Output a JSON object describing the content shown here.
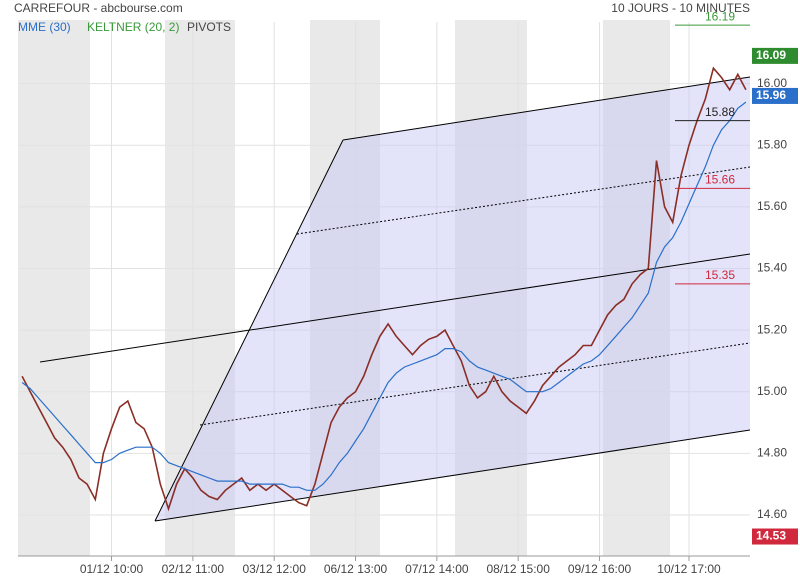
{
  "chart_data": {
    "type": "line",
    "title": "CARREFOUR - abcbourse.com",
    "subtitle": "10 JOURS - 10 MINUTES",
    "legend_extra": [
      "KELTNER (20, 2)",
      "PIVOTS"
    ],
    "categories": [
      null,
      null,
      null,
      null,
      null,
      null,
      null,
      null,
      null,
      null,
      null,
      "01/12 10:00",
      null,
      null,
      null,
      null,
      null,
      null,
      null,
      null,
      null,
      "02/12 11:00",
      null,
      null,
      null,
      null,
      null,
      null,
      null,
      null,
      null,
      "03/12 12:00",
      null,
      null,
      null,
      null,
      null,
      null,
      null,
      null,
      null,
      "06/12 13:00",
      null,
      null,
      null,
      null,
      null,
      null,
      null,
      null,
      null,
      "07/12 14:00",
      null,
      null,
      null,
      null,
      null,
      null,
      null,
      null,
      null,
      "08/12 15:00",
      null,
      null,
      null,
      null,
      null,
      null,
      null,
      null,
      null,
      "09/12 16:00",
      null,
      null,
      null,
      null,
      null,
      null,
      null,
      null,
      null,
      null,
      "10/12 17:00",
      null,
      null,
      null,
      null,
      null,
      null,
      null
    ],
    "series": [
      {
        "name": "CARREFOUR",
        "color": "#8a2e26",
        "values": [
          15.05,
          15.0,
          14.95,
          14.9,
          14.85,
          14.82,
          14.78,
          14.72,
          14.7,
          14.65,
          14.8,
          14.88,
          14.95,
          14.97,
          14.9,
          14.88,
          14.82,
          14.7,
          14.62,
          14.7,
          14.75,
          14.72,
          14.68,
          14.66,
          14.65,
          14.68,
          14.7,
          14.72,
          14.68,
          14.7,
          14.68,
          14.7,
          14.68,
          14.66,
          14.64,
          14.63,
          14.7,
          14.8,
          14.9,
          14.95,
          14.98,
          15.0,
          15.05,
          15.12,
          15.18,
          15.22,
          15.18,
          15.15,
          15.12,
          15.15,
          15.17,
          15.18,
          15.2,
          15.15,
          15.1,
          15.02,
          14.98,
          15.0,
          15.05,
          15.0,
          14.97,
          14.95,
          14.93,
          14.97,
          15.02,
          15.05,
          15.08,
          15.1,
          15.12,
          15.15,
          15.15,
          15.2,
          15.25,
          15.28,
          15.3,
          15.35,
          15.38,
          15.4,
          15.75,
          15.6,
          15.55,
          15.7,
          15.8,
          15.88,
          15.95,
          16.05,
          16.02,
          15.98,
          16.03,
          15.98
        ]
      },
      {
        "name": "MME (30)",
        "color": "#2a6fc9",
        "values": [
          15.03,
          15.01,
          14.98,
          14.95,
          14.92,
          14.89,
          14.86,
          14.83,
          14.8,
          14.77,
          14.77,
          14.78,
          14.8,
          14.81,
          14.82,
          14.82,
          14.82,
          14.8,
          14.77,
          14.76,
          14.75,
          14.74,
          14.73,
          14.72,
          14.71,
          14.71,
          14.71,
          14.71,
          14.7,
          14.7,
          14.7,
          14.7,
          14.7,
          14.69,
          14.69,
          14.68,
          14.68,
          14.7,
          14.73,
          14.77,
          14.8,
          14.84,
          14.88,
          14.93,
          14.98,
          15.03,
          15.06,
          15.08,
          15.09,
          15.1,
          15.11,
          15.12,
          15.14,
          15.14,
          15.13,
          15.1,
          15.08,
          15.07,
          15.06,
          15.05,
          15.04,
          15.02,
          15.0,
          15.0,
          15.0,
          15.01,
          15.03,
          15.05,
          15.07,
          15.09,
          15.1,
          15.12,
          15.15,
          15.18,
          15.21,
          15.24,
          15.28,
          15.32,
          15.42,
          15.47,
          15.5,
          15.55,
          15.61,
          15.67,
          15.73,
          15.8,
          15.85,
          15.88,
          15.92,
          15.94
        ]
      }
    ],
    "pivots": [
      {
        "value": 16.19,
        "color": "#3a9a3a"
      },
      {
        "value": 15.88,
        "color": "#222222"
      },
      {
        "value": 15.66,
        "color": "#d0283c"
      },
      {
        "value": 15.35,
        "color": "#d0283c"
      }
    ],
    "price_tags": [
      {
        "value": 16.09,
        "color": "#2e8b2e"
      },
      {
        "value": 15.96,
        "color": "#2a6fc9"
      },
      {
        "value": 14.53,
        "color": "#d0283c"
      }
    ],
    "ylim": [
      14.47,
      16.2
    ],
    "yticks": [
      {
        "value": 14.6,
        "label": "14.60"
      },
      {
        "value": 14.8,
        "label": "14.80"
      },
      {
        "value": 15.0,
        "label": "15.00"
      },
      {
        "value": 15.2,
        "label": "15.20"
      },
      {
        "value": 15.4,
        "label": "15.40"
      },
      {
        "value": 15.6,
        "label": "15.60"
      },
      {
        "value": 15.8,
        "label": "15.80"
      },
      {
        "value": 16.0,
        "label": "16.00"
      }
    ],
    "grid": true
  }
}
